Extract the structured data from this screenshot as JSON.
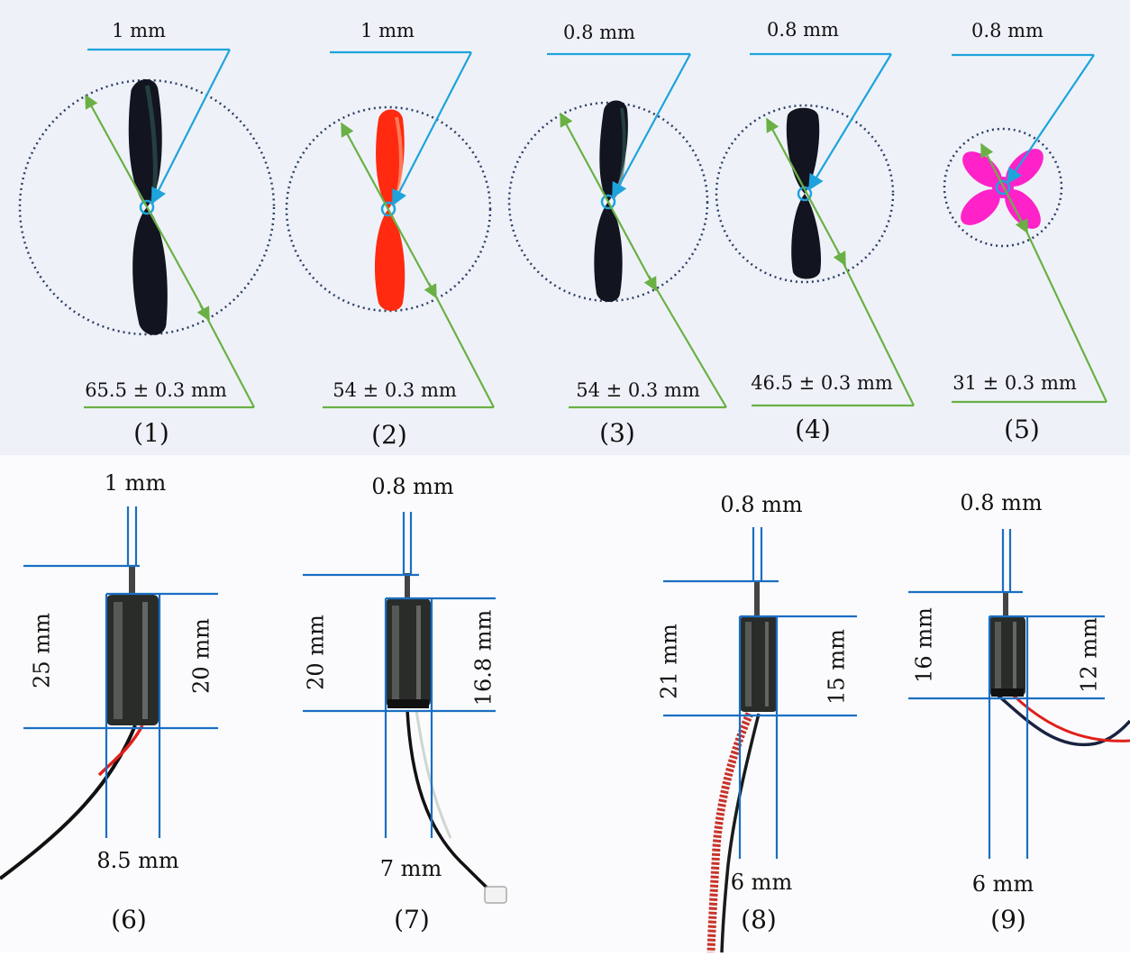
{
  "colors": {
    "hub_line": "#1ea3dc",
    "diameter_line": "#6ab045",
    "circle": "#2d3f66",
    "motor_line": "#1a6fc2",
    "prop_black": "#121420",
    "prop_red": "#ff2a10",
    "prop_pink": "#ff22c8",
    "top_bg": "#eef2f8"
  },
  "propellers": [
    {
      "caption": "(1)",
      "hub_label": "1 mm",
      "diameter_label": "65.5 ± 0.3 mm",
      "diameter_mm": 65.5,
      "hub_mm": 1,
      "color": "black",
      "icon": "two-blade-propeller-icon"
    },
    {
      "caption": "(2)",
      "hub_label": "1 mm",
      "diameter_label": "54 ± 0.3 mm",
      "diameter_mm": 54,
      "hub_mm": 1,
      "color": "red",
      "icon": "two-blade-propeller-icon"
    },
    {
      "caption": "(3)",
      "hub_label": "0.8 mm",
      "diameter_label": "54 ± 0.3 mm",
      "diameter_mm": 54,
      "hub_mm": 0.8,
      "color": "black",
      "icon": "two-blade-propeller-icon"
    },
    {
      "caption": "(4)",
      "hub_label": "0.8 mm",
      "diameter_label": "46.5 ± 0.3 mm",
      "diameter_mm": 46.5,
      "hub_mm": 0.8,
      "color": "black",
      "icon": "two-blade-propeller-icon"
    },
    {
      "caption": "(5)",
      "hub_label": "0.8 mm",
      "diameter_label": "31 ± 0.3 mm",
      "diameter_mm": 31,
      "hub_mm": 0.8,
      "color": "pink",
      "icon": "four-blade-propeller-icon"
    }
  ],
  "motors": [
    {
      "caption": "(6)",
      "shaft_label": "1 mm",
      "total_length_label": "25 mm",
      "body_length_label": "20 mm",
      "diameter_label": "8.5 mm",
      "icon": "coreless-motor-icon"
    },
    {
      "caption": "(7)",
      "shaft_label": "0.8 mm",
      "total_length_label": "20 mm",
      "body_length_label": "16.8 mm",
      "diameter_label": "7 mm",
      "icon": "coreless-motor-icon"
    },
    {
      "caption": "(8)",
      "shaft_label": "0.8 mm",
      "total_length_label": "21 mm",
      "body_length_label": "15 mm",
      "diameter_label": "6 mm",
      "icon": "coreless-motor-icon"
    },
    {
      "caption": "(9)",
      "shaft_label": "0.8 mm",
      "total_length_label": "16 mm",
      "body_length_label": "12 mm",
      "diameter_label": "6 mm",
      "icon": "coreless-motor-icon"
    }
  ]
}
